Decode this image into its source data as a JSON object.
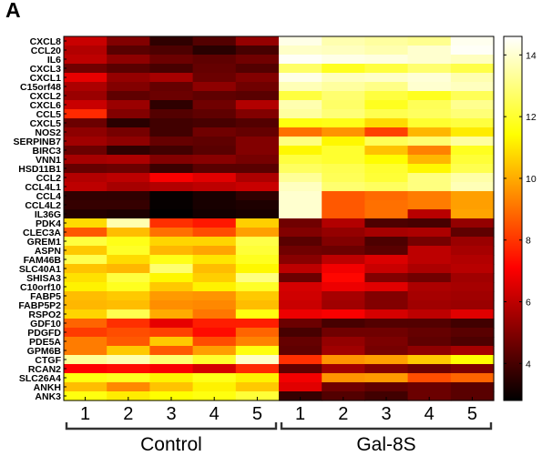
{
  "panel_label": "A",
  "chart_data": {
    "type": "heatmap",
    "rows": [
      "CXCL8",
      "CCL20",
      "IL6",
      "CXCL3",
      "CXCL1",
      "C15orf48",
      "CXCL2",
      "CXCL6",
      "CCL5",
      "CXCL5",
      "NOS2",
      "SERPINB7",
      "BIRC3",
      "VNN1",
      "HSD11B1",
      "CCL2",
      "CCL4L1",
      "CCL4",
      "CCL4L2",
      "IL36G",
      "PDK4",
      "CLEC3A",
      "GREM1",
      "ASPN",
      "FAM46B",
      "SLC40A1",
      "SHISA3",
      "C10orf10",
      "FABP5",
      "FABP5P2",
      "RSPO2",
      "GDF10",
      "PDGFD",
      "PDE5A",
      "GPM6B",
      "CTGF",
      "RCAN2",
      "SLC26A4",
      "ANKH",
      "ANK3"
    ],
    "columns": [
      "1",
      "2",
      "3",
      "4",
      "5",
      "1",
      "2",
      "3",
      "4",
      "5"
    ],
    "groups": [
      {
        "label": "Control",
        "columns": [
          0,
          1,
          2,
          3,
          4
        ]
      },
      {
        "label": "Gal-8S",
        "columns": [
          5,
          6,
          7,
          8,
          9
        ]
      }
    ],
    "colormap": "hot",
    "colorbar": {
      "min": 2.8,
      "max": 14.6,
      "ticks": [
        4,
        6,
        8,
        10,
        12,
        14
      ]
    },
    "values": [
      [
        6.2,
        5.0,
        3.6,
        4.2,
        5.3,
        14.3,
        13.6,
        13.4,
        13.2,
        14.4
      ],
      [
        5.8,
        4.3,
        4.1,
        3.5,
        4.0,
        13.9,
        13.8,
        13.6,
        14.0,
        14.5
      ],
      [
        6.0,
        5.2,
        4.6,
        4.4,
        4.7,
        14.5,
        14.3,
        14.2,
        14.0,
        13.8
      ],
      [
        4.7,
        4.3,
        4.0,
        4.5,
        4.2,
        12.7,
        11.8,
        12.2,
        12.8,
        12.3
      ],
      [
        6.7,
        5.3,
        5.6,
        4.6,
        5.0,
        14.3,
        13.8,
        13.9,
        14.1,
        13.6
      ],
      [
        5.7,
        5.0,
        4.5,
        5.2,
        4.7,
        13.7,
        13.4,
        13.1,
        14.0,
        13.8
      ],
      [
        5.4,
        4.4,
        4.6,
        4.4,
        4.3,
        12.2,
        12.8,
        12.2,
        11.8,
        12.5
      ],
      [
        6.2,
        5.4,
        3.6,
        4.7,
        5.8,
        13.6,
        12.7,
        11.8,
        12.5,
        13.2
      ],
      [
        7.8,
        5.0,
        4.2,
        4.4,
        5.0,
        13.4,
        12.9,
        12.4,
        12.6,
        12.9
      ],
      [
        4.6,
        3.5,
        3.9,
        4.0,
        4.2,
        11.6,
        11.7,
        10.8,
        12.0,
        12.2
      ],
      [
        5.2,
        4.8,
        3.9,
        4.7,
        4.5,
        9.0,
        9.6,
        8.2,
        10.2,
        11.1
      ],
      [
        5.5,
        5.2,
        4.5,
        4.4,
        5.0,
        13.0,
        11.3,
        12.5,
        12.8,
        13.4
      ],
      [
        4.6,
        3.6,
        3.9,
        4.3,
        5.0,
        11.3,
        12.0,
        10.4,
        9.3,
        11.8
      ],
      [
        5.6,
        5.7,
        5.0,
        5.1,
        4.8,
        12.2,
        12.0,
        11.4,
        10.2,
        12.1
      ],
      [
        4.5,
        4.6,
        3.8,
        4.3,
        4.3,
        12.6,
        12.4,
        12.0,
        11.3,
        12.4
      ],
      [
        5.8,
        6.0,
        7.0,
        6.6,
        5.7,
        13.3,
        12.5,
        12.1,
        13.0,
        13.5
      ],
      [
        6.0,
        5.6,
        5.8,
        6.0,
        6.2,
        13.8,
        12.8,
        12.6,
        13.0,
        13.7
      ],
      [
        3.6,
        3.6,
        2.9,
        3.2,
        3.6,
        14.0,
        8.6,
        8.9,
        9.2,
        9.8
      ],
      [
        3.7,
        3.7,
        2.9,
        3.2,
        3.3,
        14.0,
        8.6,
        9.0,
        9.2,
        9.8
      ],
      [
        3.4,
        3.3,
        2.8,
        3.1,
        3.2,
        14.0,
        8.6,
        9.0,
        5.9,
        9.9
      ],
      [
        10.8,
        13.6,
        7.9,
        7.5,
        10.6,
        4.7,
        5.8,
        4.1,
        4.0,
        5.3
      ],
      [
        8.6,
        10.3,
        9.0,
        8.4,
        9.8,
        5.0,
        5.3,
        5.6,
        5.7,
        4.4
      ],
      [
        12.2,
        11.7,
        10.7,
        10.7,
        12.3,
        4.3,
        5.0,
        4.1,
        4.8,
        5.4
      ],
      [
        10.5,
        11.9,
        10.2,
        9.9,
        12.1,
        4.7,
        4.6,
        4.3,
        6.0,
        5.6
      ],
      [
        12.4,
        10.8,
        11.7,
        11.0,
        11.8,
        5.1,
        6.0,
        6.5,
        6.0,
        5.8
      ],
      [
        10.4,
        10.2,
        12.8,
        10.3,
        11.3,
        6.0,
        6.9,
        6.2,
        5.7,
        5.9
      ],
      [
        10.9,
        12.2,
        11.3,
        10.6,
        13.0,
        4.6,
        7.2,
        5.0,
        4.7,
        5.5
      ],
      [
        11.2,
        11.8,
        10.5,
        11.2,
        11.9,
        6.4,
        6.8,
        6.6,
        5.7,
        5.6
      ],
      [
        10.3,
        10.5,
        9.7,
        9.6,
        10.5,
        6.3,
        5.6,
        5.0,
        5.6,
        5.5
      ],
      [
        10.2,
        10.3,
        9.5,
        9.4,
        10.3,
        6.2,
        5.5,
        5.0,
        5.5,
        5.4
      ],
      [
        10.7,
        12.4,
        10.0,
        9.1,
        11.6,
        6.8,
        7.0,
        6.4,
        6.0,
        6.6
      ],
      [
        8.8,
        7.9,
        6.7,
        7.6,
        7.6,
        4.6,
        4.0,
        4.2,
        4.2,
        3.9
      ],
      [
        8.1,
        8.4,
        8.2,
        7.3,
        8.8,
        4.0,
        4.7,
        4.7,
        4.5,
        4.3
      ],
      [
        9.2,
        8.6,
        10.5,
        8.4,
        9.3,
        4.5,
        5.3,
        4.9,
        4.4,
        4.1
      ],
      [
        9.2,
        10.5,
        8.6,
        9.8,
        11.6,
        4.4,
        5.5,
        4.8,
        5.2,
        5.6
      ],
      [
        13.3,
        13.6,
        12.8,
        12.0,
        13.9,
        7.9,
        9.6,
        9.8,
        10.5,
        11.4
      ],
      [
        7.1,
        7.3,
        7.0,
        6.4,
        7.8,
        4.4,
        5.5,
        5.0,
        4.6,
        4.9
      ],
      [
        11.6,
        11.8,
        11.2,
        11.7,
        11.2,
        6.9,
        9.6,
        9.7,
        8.4,
        8.8
      ],
      [
        10.3,
        9.4,
        10.4,
        11.2,
        10.5,
        6.6,
        4.7,
        4.4,
        4.6,
        4.3
      ],
      [
        11.6,
        11.1,
        11.4,
        11.6,
        12.1,
        3.7,
        4.2,
        3.9,
        4.6,
        4.3
      ]
    ]
  }
}
